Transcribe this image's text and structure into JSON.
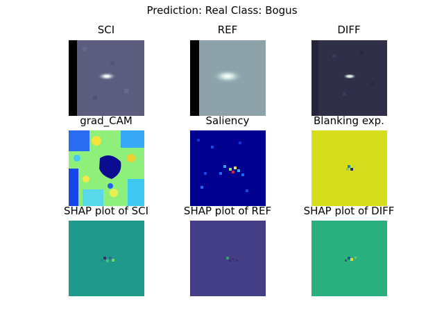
{
  "suptitle": "Prediction: Real  Class: Bogus",
  "panels": [
    {
      "title": "SCI",
      "icon": "sci-cutout-image"
    },
    {
      "title": "REF",
      "icon": "ref-cutout-image"
    },
    {
      "title": "DIFF",
      "icon": "diff-cutout-image"
    },
    {
      "title": "grad_CAM",
      "icon": "gradcam-heatmap-image"
    },
    {
      "title": "Saliency",
      "icon": "saliency-map-image"
    },
    {
      "title": "Blanking exp.",
      "icon": "blanking-explanation-image"
    },
    {
      "title": "SHAP plot of SCI",
      "icon": "shap-sci-image"
    },
    {
      "title": "SHAP plot of REF",
      "icon": "shap-ref-image"
    },
    {
      "title": "SHAP plot of DIFF",
      "icon": "shap-diff-image"
    }
  ]
}
